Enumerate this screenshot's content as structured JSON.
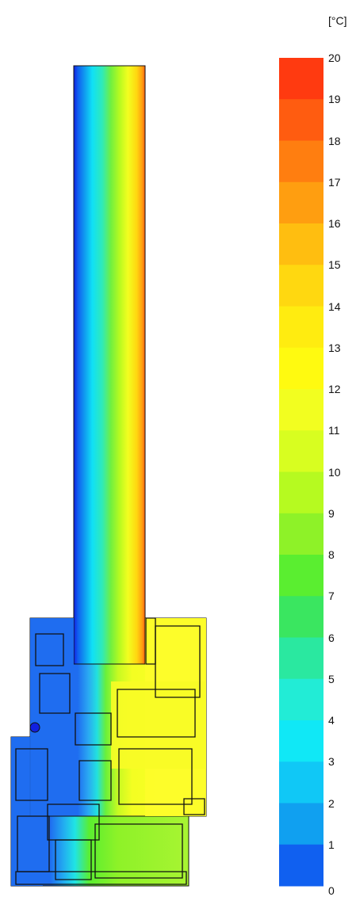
{
  "legend": {
    "unit": "[°C]",
    "min": 0,
    "max": 20,
    "ticks": [
      "20",
      "19",
      "18",
      "17",
      "16",
      "15",
      "14",
      "13",
      "12",
      "11",
      "10",
      "9",
      "8",
      "7",
      "6",
      "5",
      "4",
      "3",
      "2",
      "1",
      "0"
    ],
    "colors": [
      "#ff3a10",
      "#ff5c10",
      "#ff7e10",
      "#ff9e10",
      "#ffbe10",
      "#ffd810",
      "#ffec10",
      "#fffa10",
      "#f2fe20",
      "#d8fe20",
      "#b6fa20",
      "#8ef228",
      "#5aee30",
      "#3ae660",
      "#2ae8a0",
      "#22ecd6",
      "#10e8f6",
      "#10c8f6",
      "#10a0f0",
      "#1060f0",
      "#1020e0"
    ],
    "bottom_color": "#10108a"
  },
  "diagram": {
    "colors": {
      "outline": "#111111",
      "cold_frame": "#1f6df0",
      "warm_frame": "#fdfd2a",
      "lower_warm": "#a0f23a"
    }
  }
}
